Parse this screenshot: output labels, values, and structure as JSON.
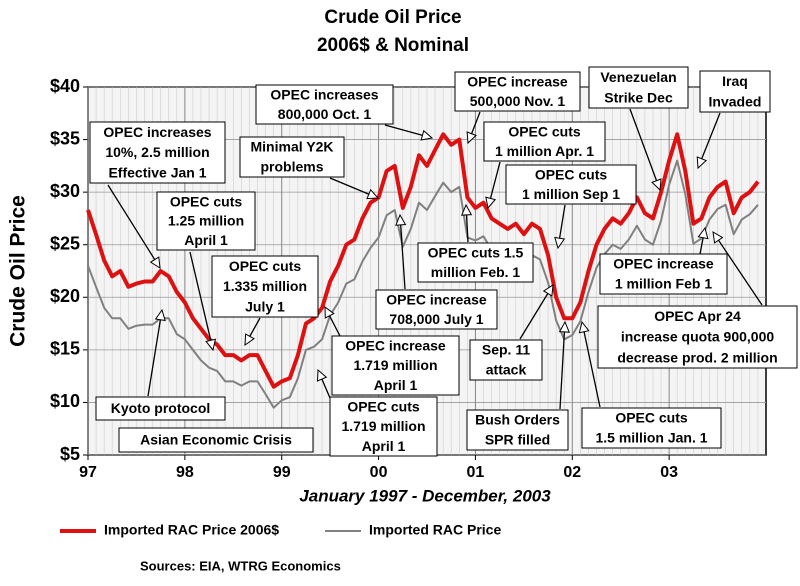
{
  "chart_data": {
    "type": "line",
    "title": "Crude Oil Price",
    "subtitle": "2006$ & Nominal",
    "x_label": "January 1997 - December, 2003",
    "y_label": "Crude Oil Price",
    "source": "Sources: EIA, WTRG Economics",
    "xlim": [
      1997,
      2004
    ],
    "xticks": [
      {
        "value": 1997,
        "label": "97"
      },
      {
        "value": 1998,
        "label": "98"
      },
      {
        "value": 1999,
        "label": "99"
      },
      {
        "value": 2000,
        "label": "00"
      },
      {
        "value": 2001,
        "label": "01"
      },
      {
        "value": 2002,
        "label": "02"
      },
      {
        "value": 2003,
        "label": "03"
      }
    ],
    "ylim": [
      5,
      40
    ],
    "yticks": [
      {
        "value": 5,
        "label": "$5"
      },
      {
        "value": 10,
        "label": "$10"
      },
      {
        "value": 15,
        "label": "$15"
      },
      {
        "value": 20,
        "label": "$20"
      },
      {
        "value": 25,
        "label": "$25"
      },
      {
        "value": 30,
        "label": "$30"
      },
      {
        "value": 35,
        "label": "$35"
      },
      {
        "value": 40,
        "label": "$40"
      }
    ],
    "grid": true,
    "x": [
      1997,
      1997.083,
      1997.167,
      1997.25,
      1997.333,
      1997.417,
      1997.5,
      1997.583,
      1997.667,
      1997.75,
      1997.833,
      1997.917,
      1998,
      1998.083,
      1998.167,
      1998.25,
      1998.333,
      1998.417,
      1998.5,
      1998.583,
      1998.667,
      1998.75,
      1998.833,
      1998.917,
      1999,
      1999.083,
      1999.167,
      1999.25,
      1999.333,
      1999.417,
      1999.5,
      1999.583,
      1999.667,
      1999.75,
      1999.833,
      1999.917,
      2000,
      2000.083,
      2000.167,
      2000.25,
      2000.333,
      2000.417,
      2000.5,
      2000.583,
      2000.667,
      2000.75,
      2000.833,
      2000.917,
      2001,
      2001.083,
      2001.167,
      2001.25,
      2001.333,
      2001.417,
      2001.5,
      2001.583,
      2001.667,
      2001.75,
      2001.833,
      2001.917,
      2002,
      2002.083,
      2002.167,
      2002.25,
      2002.333,
      2002.417,
      2002.5,
      2002.583,
      2002.667,
      2002.75,
      2002.833,
      2002.917,
      2003,
      2003.083,
      2003.167,
      2003.25,
      2003.333,
      2003.417,
      2003.5,
      2003.583,
      2003.667,
      2003.75,
      2003.833,
      2003.917
    ],
    "series": [
      {
        "name": "Imported RAC Price 2006$",
        "color": "#dd1111",
        "width": 4,
        "values": [
          28.3,
          26,
          23.5,
          22,
          22.5,
          21,
          21.3,
          21.5,
          21.5,
          22.5,
          22,
          20.5,
          19.5,
          18,
          17,
          16,
          15.5,
          14.5,
          14.5,
          14,
          14.5,
          14.5,
          13,
          11.5,
          12,
          12.3,
          14.5,
          17.5,
          18,
          19,
          21.5,
          23,
          25,
          25.5,
          27.5,
          29,
          29.5,
          32,
          32.5,
          28.5,
          30.5,
          33.5,
          32.5,
          34,
          35.5,
          34.5,
          35,
          29.5,
          28.5,
          29,
          27.5,
          27,
          26.5,
          27,
          26,
          27,
          26.5,
          24,
          20,
          18,
          18,
          19.5,
          22.5,
          25,
          26.5,
          27.5,
          27,
          28,
          29.5,
          28,
          27.5,
          30,
          33,
          35.5,
          32,
          27,
          27.5,
          29.5,
          30.5,
          31,
          28,
          29.5,
          30,
          31
        ]
      },
      {
        "name": "Imported RAC Price",
        "color": "#808080",
        "width": 2,
        "values": [
          23,
          21,
          19,
          18,
          18,
          17,
          17.3,
          17.4,
          17.4,
          18,
          18,
          16.5,
          16,
          15,
          14,
          13.3,
          13,
          12,
          12,
          11.6,
          12,
          12,
          10.8,
          9.5,
          10.2,
          10.5,
          12.3,
          15,
          15.3,
          16,
          18.3,
          19.5,
          21.3,
          21.7,
          23.4,
          24.7,
          25.7,
          27.8,
          28.3,
          24.8,
          26.5,
          29,
          28.3,
          29.6,
          30.9,
          30,
          30.5,
          25.7,
          25.4,
          25.8,
          24.5,
          24,
          23.6,
          24,
          23.1,
          24,
          23.6,
          21.4,
          17.8,
          16,
          16.4,
          17.7,
          20.5,
          22.8,
          24.1,
          25,
          24.6,
          25.5,
          26.8,
          25.5,
          25,
          27.3,
          30.7,
          33,
          29.8,
          25.1,
          25.6,
          27.4,
          28.4,
          28.8,
          26,
          27.4,
          27.9,
          28.8
        ]
      }
    ],
    "annotations": [
      {
        "lines": [
          "OPEC increases",
          "10%, 2.5 million",
          "Effective Jan 1"
        ]
      },
      {
        "lines": [
          "OPEC cuts",
          "1.25 million",
          "April 1"
        ]
      },
      {
        "lines": [
          "OPEC cuts",
          "1.335 million",
          "July 1"
        ]
      },
      {
        "lines": [
          "Minimal Y2K",
          "problems"
        ]
      },
      {
        "lines": [
          "OPEC increases",
          "800,000 Oct. 1"
        ]
      },
      {
        "lines": [
          "OPEC increase",
          "500,000 Nov. 1"
        ]
      },
      {
        "lines": [
          "OPEC cuts",
          "1 million Apr. 1"
        ]
      },
      {
        "lines": [
          "OPEC cuts",
          "1 million Sep 1"
        ]
      },
      {
        "lines": [
          "Venezuelan",
          "Strike Dec"
        ]
      },
      {
        "lines": [
          "Iraq",
          "Invaded"
        ]
      },
      {
        "lines": [
          "OPEC cuts 1.5",
          "million Feb. 1"
        ]
      },
      {
        "lines": [
          "OPEC increase",
          "708,000 July 1"
        ]
      },
      {
        "lines": [
          "OPEC increase",
          "1.719 million",
          "April 1"
        ]
      },
      {
        "lines": [
          "OPEC cuts",
          "1.719 million",
          "April 1"
        ]
      },
      {
        "lines": [
          "Kyoto protocol"
        ]
      },
      {
        "lines": [
          "Asian Economic Crisis"
        ]
      },
      {
        "lines": [
          "OPEC increase",
          "1 million Feb 1"
        ]
      },
      {
        "lines": [
          "OPEC Apr 24",
          "increase quota 900,000",
          "decrease prod. 2 million"
        ]
      },
      {
        "lines": [
          "Sep. 11",
          "attack"
        ]
      },
      {
        "lines": [
          "Bush Orders",
          "SPR filled"
        ]
      },
      {
        "lines": [
          "OPEC cuts",
          "1.5 million Jan. 1"
        ]
      }
    ]
  }
}
